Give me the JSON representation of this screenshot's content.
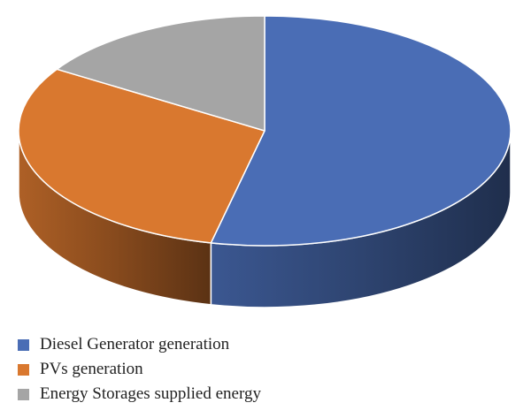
{
  "chart_data": {
    "type": "pie",
    "title": "",
    "style": "3d",
    "legend_position": "bottom-left",
    "slices": [
      {
        "label": "Diesel Generator generation",
        "value": 53.5,
        "color": "#4A6DB5"
      },
      {
        "label": "PVs generation",
        "value": 30.5,
        "color": "#D9782F"
      },
      {
        "label": "Energy Storages supplied energy",
        "value": 16.0,
        "color": "#A5A5A5"
      }
    ]
  }
}
